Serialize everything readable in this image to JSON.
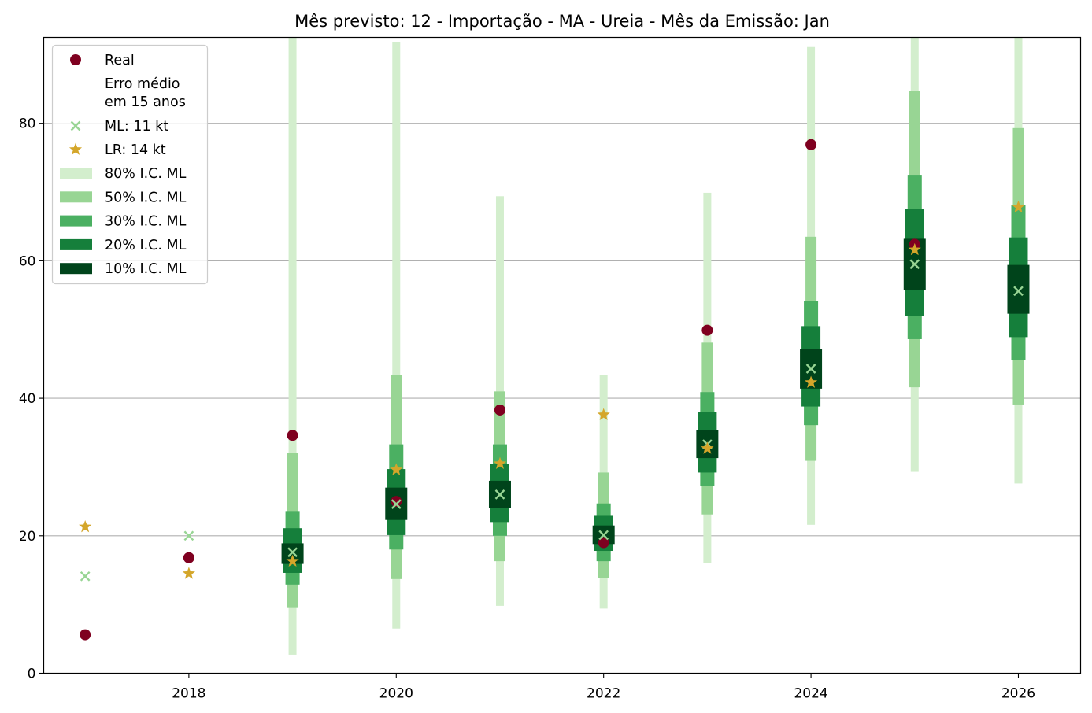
{
  "chart_data": {
    "type": "scatter",
    "title": "Mês previsto: 12 - Importação - MA - Ureia - Mês da Emissão: Jan",
    "xlabel": "",
    "ylabel": "",
    "xlim": [
      2016.6,
      2026.6
    ],
    "ylim": [
      0,
      92.5
    ],
    "xticks": [
      2018,
      2020,
      2022,
      2024,
      2026
    ],
    "yticks": [
      0,
      20,
      40,
      60,
      80
    ],
    "grid": "horizontal",
    "legend_position": "upper-left",
    "x": [
      2017,
      2018,
      2019,
      2020,
      2021,
      2022,
      2023,
      2024,
      2025,
      2026
    ],
    "series": [
      {
        "name": "Real",
        "marker": "circle",
        "color": "#7f0020",
        "values": [
          5.6,
          16.8,
          34.6,
          25.0,
          38.3,
          19.0,
          49.9,
          76.9,
          62.4,
          null
        ]
      },
      {
        "name": "ML: 11 kt",
        "marker": "x",
        "color": "#98d594",
        "values": [
          14.1,
          20.0,
          17.6,
          24.6,
          26.0,
          20.1,
          33.3,
          44.3,
          59.5,
          55.6
        ]
      },
      {
        "name": "LR: 14 kt",
        "marker": "star",
        "color": "#d4a62a",
        "values": [
          21.3,
          14.5,
          16.3,
          29.6,
          30.5,
          37.6,
          32.7,
          42.3,
          61.6,
          67.8
        ]
      }
    ],
    "legend_note": "Erro médio\nem 15 anos",
    "intervals": [
      {
        "name": "80% I.C. ML",
        "color": "#d3eecd",
        "ranges": [
          null,
          null,
          [
            2.7,
            92.5
          ],
          [
            6.5,
            91.8
          ],
          [
            9.8,
            69.4
          ],
          [
            9.4,
            43.4
          ],
          [
            16.0,
            69.9
          ],
          [
            21.6,
            91.1
          ],
          [
            29.3,
            92.5
          ],
          [
            27.6,
            92.5
          ]
        ]
      },
      {
        "name": "50% I.C. ML",
        "color": "#98d594",
        "ranges": [
          null,
          null,
          [
            9.6,
            32.0
          ],
          [
            13.7,
            43.4
          ],
          [
            16.3,
            41.0
          ],
          [
            13.9,
            29.2
          ],
          [
            23.1,
            48.1
          ],
          [
            30.9,
            63.5
          ],
          [
            41.6,
            84.7
          ],
          [
            39.1,
            79.3
          ]
        ]
      },
      {
        "name": "30% I.C. ML",
        "color": "#4bb062",
        "ranges": [
          null,
          null,
          [
            12.9,
            23.6
          ],
          [
            18.0,
            33.3
          ],
          [
            20.0,
            33.3
          ],
          [
            16.3,
            24.7
          ],
          [
            27.3,
            40.9
          ],
          [
            36.1,
            54.1
          ],
          [
            48.6,
            72.4
          ],
          [
            45.6,
            68.1
          ]
        ]
      },
      {
        "name": "20% I.C. ML",
        "color": "#157f3b",
        "ranges": [
          null,
          null,
          [
            14.6,
            21.1
          ],
          [
            20.1,
            29.7
          ],
          [
            22.0,
            30.5
          ],
          [
            17.8,
            22.9
          ],
          [
            29.2,
            38.0
          ],
          [
            38.8,
            50.5
          ],
          [
            52.0,
            67.5
          ],
          [
            48.9,
            63.4
          ]
        ]
      },
      {
        "name": "10% I.C. ML",
        "color": "#00441b",
        "ranges": [
          null,
          null,
          [
            15.9,
            18.9
          ],
          [
            22.3,
            27.0
          ],
          [
            24.0,
            28.0
          ],
          [
            18.8,
            21.5
          ],
          [
            31.3,
            35.4
          ],
          [
            41.4,
            47.2
          ],
          [
            55.7,
            63.2
          ],
          [
            52.3,
            59.4
          ]
        ]
      }
    ]
  }
}
